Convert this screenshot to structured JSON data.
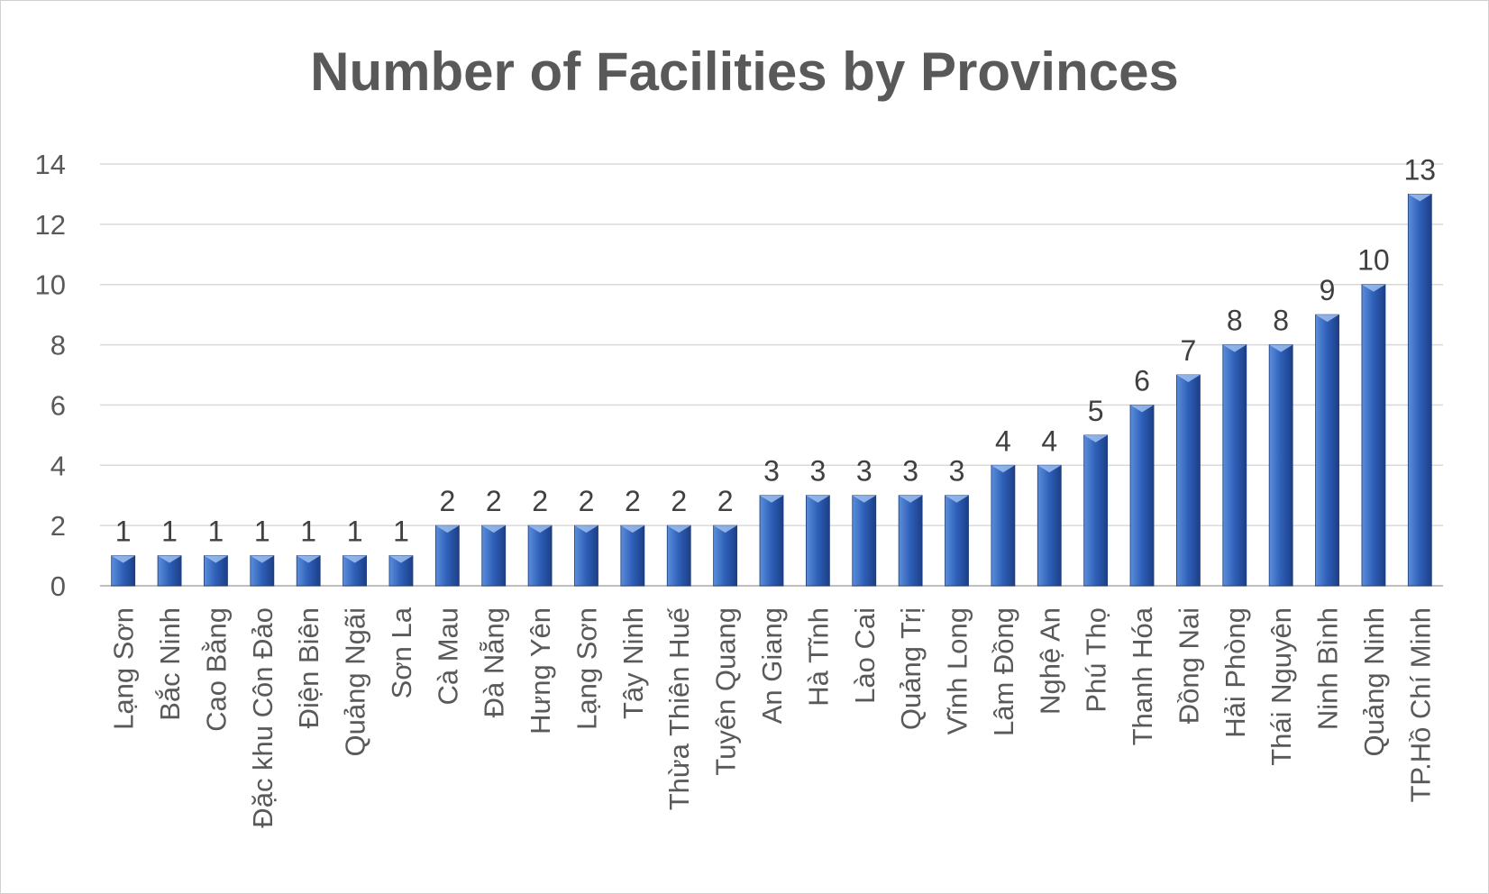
{
  "chart_data": {
    "type": "bar",
    "title": "Number of Facilities by Provinces",
    "xlabel": "",
    "ylabel": "",
    "ylim": [
      0,
      14
    ],
    "yticks": [
      0,
      2,
      4,
      6,
      8,
      10,
      12,
      14
    ],
    "grid": true,
    "legend": "none",
    "bar_color": "#2E5FB8",
    "categories": [
      "Lạng Sơn",
      "Bắc Ninh",
      "Cao Bằng",
      "Đặc khu Côn Đảo",
      "Điện Biên",
      "Quảng Ngãi",
      "Sơn La",
      "Cà Mau",
      "Đà Nẵng",
      "Hưng Yên",
      "Lạng Sơn",
      "Tây Ninh",
      "Thừa Thiên Huế",
      "Tuyên Quang",
      "An Giang",
      "Hà Tĩnh",
      "Lào Cai",
      "Quảng Trị",
      "Vĩnh Long",
      "Lâm Đồng",
      "Nghệ An",
      "Phú Thọ",
      "Thanh Hóa",
      "Đồng Nai",
      "Hải Phòng",
      "Thái Nguyên",
      "Ninh Bình",
      "Quảng Ninh",
      "TP.Hồ Chí Minh"
    ],
    "values": [
      1,
      1,
      1,
      1,
      1,
      1,
      1,
      2,
      2,
      2,
      2,
      2,
      2,
      2,
      3,
      3,
      3,
      3,
      3,
      4,
      4,
      5,
      6,
      7,
      8,
      8,
      9,
      10,
      13
    ]
  }
}
